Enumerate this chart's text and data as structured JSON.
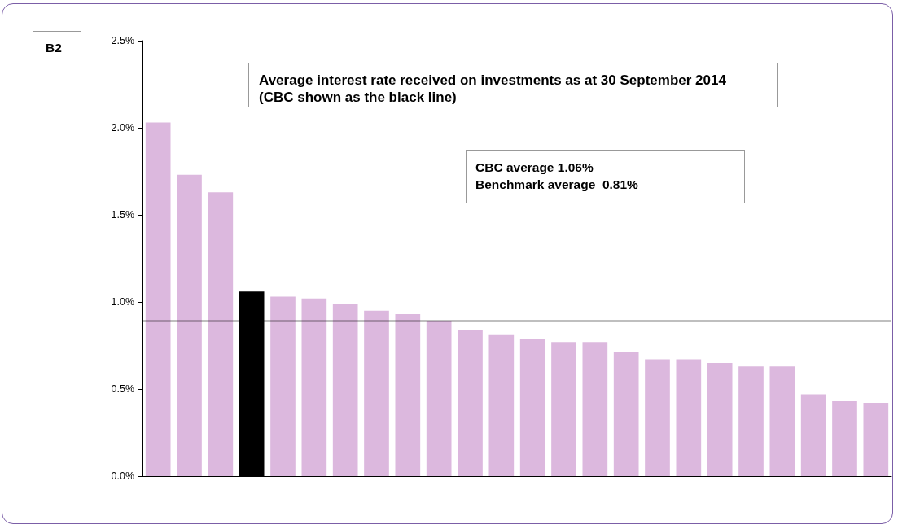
{
  "chart_data": {
    "type": "bar",
    "title": "Average interest rate received on investments as at 30 September 2014  (CBC shown as the black line)",
    "categories": [
      null,
      null,
      null,
      null,
      null,
      null,
      null,
      null,
      null,
      null,
      null,
      null,
      null,
      null,
      null,
      null,
      null,
      null,
      null,
      null,
      null,
      null,
      null,
      null
    ],
    "values": [
      2.03,
      1.73,
      1.63,
      1.06,
      1.03,
      1.02,
      0.99,
      0.95,
      0.93,
      0.89,
      0.84,
      0.81,
      0.79,
      0.77,
      0.77,
      0.71,
      0.67,
      0.67,
      0.65,
      0.63,
      0.63,
      0.47,
      0.43,
      0.42
    ],
    "colors": [
      "#dcb8de",
      "#dcb8de",
      "#dcb8de",
      "#000000",
      "#dcb8de",
      "#dcb8de",
      "#dcb8de",
      "#dcb8de",
      "#dcb8de",
      "#dcb8de",
      "#dcb8de",
      "#dcb8de",
      "#dcb8de",
      "#dcb8de",
      "#dcb8de",
      "#dcb8de",
      "#dcb8de",
      "#dcb8de",
      "#dcb8de",
      "#dcb8de",
      "#dcb8de",
      "#dcb8de",
      "#dcb8de",
      "#dcb8de"
    ],
    "ylim": [
      0,
      2.5
    ],
    "yticks": [
      {
        "value": 0,
        "label": "0.0%"
      },
      {
        "value": 0.5,
        "label": "0.5%"
      },
      {
        "value": 1,
        "label": "1.0%"
      },
      {
        "value": 1.5,
        "label": "1.5%"
      },
      {
        "value": 2,
        "label": "2.0%"
      },
      {
        "value": 2.5,
        "label": "2.5%"
      }
    ],
    "ref_lines": [
      {
        "axis": "y",
        "value": 0.89,
        "color": "#000000"
      }
    ],
    "annotations": [
      "B2",
      "CBC average 1.06%",
      "Benchmark average  0.81%"
    ],
    "grid": false
  }
}
